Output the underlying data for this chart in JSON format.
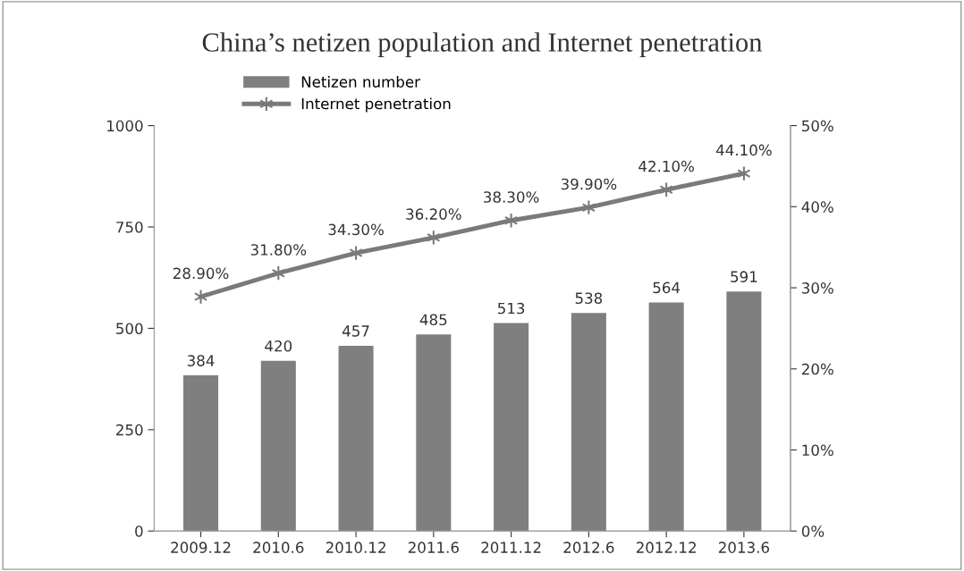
{
  "chart_data": {
    "type": "bar",
    "title": "China’s netizen population and Internet penetration",
    "categories": [
      "2009.12",
      "2010.6",
      "2010.12",
      "2011.6",
      "2011.12",
      "2012.6",
      "2012.12",
      "2013.6"
    ],
    "series": [
      {
        "name": "Netizen number",
        "color": "#7f7f7f",
        "values": [
          384,
          420,
          457,
          485,
          513,
          538,
          564,
          591
        ],
        "value_labels": [
          "384",
          "420",
          "457",
          "485",
          "513",
          "538",
          "564",
          "591"
        ]
      },
      {
        "name": "Internet penetration",
        "type": "line",
        "axis": "y2",
        "color": "#7a7a7a",
        "marker": "cross",
        "line_style": "solid",
        "values": [
          28.9,
          31.8,
          34.3,
          36.2,
          38.3,
          39.9,
          42.1,
          44.1
        ],
        "value_labels": [
          "28.90%",
          "31.80%",
          "34.30%",
          "36.20%",
          "38.30%",
          "39.90%",
          "42.10%",
          "44.10%"
        ]
      }
    ],
    "ylim": [
      0,
      1000
    ],
    "yticks": [
      0,
      250,
      500,
      750,
      1000
    ],
    "y2lim": [
      0,
      50
    ],
    "y2ticks": [
      {
        "value": 0,
        "label": "0%"
      },
      {
        "value": 10,
        "label": "10%"
      },
      {
        "value": 20,
        "label": "20%"
      },
      {
        "value": 30,
        "label": "30%"
      },
      {
        "value": 40,
        "label": "40%"
      },
      {
        "value": 50,
        "label": "50%"
      }
    ],
    "grid": false,
    "legend": "top left"
  }
}
